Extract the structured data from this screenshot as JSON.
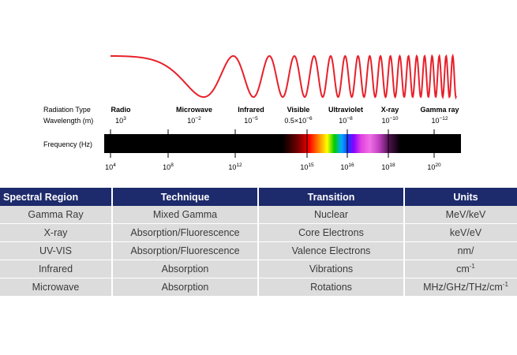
{
  "colors": {
    "wave": "#e8202a",
    "header_bg": "#1d2a6b",
    "row_bg": "#dcdcdc",
    "header_text": "#ffffff"
  },
  "labels": {
    "radiation_type": "Radiation Type",
    "wavelength": "Wavelength (m)",
    "frequency": "Frequency (Hz)"
  },
  "regions": [
    {
      "name": "Radio",
      "wl_base": "10",
      "wl_exp": "3"
    },
    {
      "name": "Microwave",
      "wl_base": "10",
      "wl_exp": "−2"
    },
    {
      "name": "Infrared",
      "wl_base": "10",
      "wl_exp": "−5"
    },
    {
      "name": "Visible",
      "wl_base": "0.5×10",
      "wl_exp": "−6"
    },
    {
      "name": "Ultraviolet",
      "wl_base": "10",
      "wl_exp": "−8"
    },
    {
      "name": "X-ray",
      "wl_base": "10",
      "wl_exp": "−10"
    },
    {
      "name": "Gamma ray",
      "wl_base": "10",
      "wl_exp": "−12"
    }
  ],
  "frequency_ticks": [
    {
      "base": "10",
      "exp": "4"
    },
    {
      "base": "10",
      "exp": "8"
    },
    {
      "base": "10",
      "exp": "12"
    },
    {
      "base": "10",
      "exp": "15"
    },
    {
      "base": "10",
      "exp": "16"
    },
    {
      "base": "10",
      "exp": "18"
    },
    {
      "base": "10",
      "exp": "20"
    }
  ],
  "table": {
    "headers": [
      "Spectral Region",
      "Technique",
      "Transition",
      "Units"
    ],
    "rows": [
      [
        "Gamma Ray",
        "Mixed Gamma",
        "Nuclear",
        "MeV/keV"
      ],
      [
        "X-ray",
        "Absorption/Fluorescence",
        "Core Electrons",
        "keV/eV"
      ],
      [
        "UV-VIS",
        "Absorption/Fluorescence",
        "Valence Electrons",
        "nm/"
      ],
      [
        "Infrared",
        "Absorption",
        "Vibrations",
        "cm"
      ],
      [
        "Microwave",
        "Absorption",
        "Rotations",
        "MHz/GHz/THz/cm"
      ]
    ],
    "infrared_units_exp": "-1",
    "microwave_units_exp": "-1"
  }
}
